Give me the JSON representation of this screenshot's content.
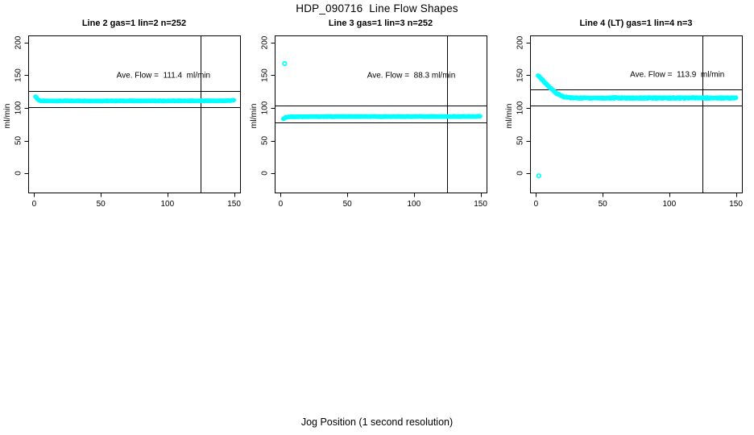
{
  "window": {
    "title": "HDP_090716  Line Flow Shapes",
    "xlabel": "Jog Position (1 second resolution)"
  },
  "colors": {
    "point": "#00FFFF",
    "line": "#000000",
    "background": "#FFFFFF"
  },
  "chart_data": [
    {
      "type": "scatter",
      "title": "Line 2 gas=1 lin=2 n=252",
      "ylabel": "ml/min",
      "ave_flow_ml_min": 111.4,
      "n_points": 252,
      "annotation": {
        "text": "Ave. Flow =  111.4  ml/min",
        "x": 97,
        "y": 149
      },
      "x_ticks": [
        0,
        50,
        100,
        150
      ],
      "y_ticks": [
        0,
        50,
        100,
        150,
        200
      ],
      "xlim": [
        -4.5,
        154.5
      ],
      "ylim": [
        -29.6,
        211.1
      ],
      "vline_x": 125,
      "hlines": [
        126.4,
        101.4
      ],
      "series": [
        {
          "name": "flow",
          "step": 0.6,
          "jitter": 0.35,
          "keypoints": [
            [
              1,
              117.6
            ],
            [
              1.5,
              116.3
            ],
            [
              2,
              114.9
            ],
            [
              2.5,
              113.7
            ],
            [
              3,
              112.7
            ],
            [
              3.5,
              112.0
            ],
            [
              4,
              111.5
            ],
            [
              5,
              111.0
            ],
            [
              6,
              110.8
            ],
            [
              8,
              110.7
            ],
            [
              15,
              110.8
            ],
            [
              30,
              110.9
            ],
            [
              50,
              110.8
            ],
            [
              70,
              110.9
            ],
            [
              90,
              110.8
            ],
            [
              110,
              110.9
            ],
            [
              130,
              110.9
            ],
            [
              142,
              111.0
            ],
            [
              146,
              111.2
            ],
            [
              148,
              111.6
            ],
            [
              150,
              112.0
            ]
          ]
        }
      ],
      "outliers": []
    },
    {
      "type": "scatter",
      "title": "Line 3 gas=1 lin=3 n=252",
      "ylabel": "ml/min",
      "ave_flow_ml_min": 88.3,
      "n_points": 252,
      "annotation": {
        "text": "Ave. Flow =  88.3 ml/min",
        "x": 98,
        "y": 149
      },
      "x_ticks": [
        0,
        50,
        100,
        150
      ],
      "y_ticks": [
        0,
        50,
        100,
        150,
        200
      ],
      "xlim": [
        -4.5,
        154.5
      ],
      "ylim": [
        -29.6,
        211.1
      ],
      "vline_x": 125,
      "hlines": [
        103.3,
        78.3
      ],
      "series": [
        {
          "name": "flow",
          "step": 0.6,
          "jitter": 0.35,
          "keypoints": [
            [
              2,
              83.0
            ],
            [
              2.5,
              83.9
            ],
            [
              3,
              84.7
            ],
            [
              3.5,
              85.3
            ],
            [
              4,
              85.8
            ],
            [
              5,
              86.2
            ],
            [
              6,
              86.5
            ],
            [
              10,
              86.6
            ],
            [
              25,
              86.7
            ],
            [
              50,
              86.8
            ],
            [
              80,
              86.8
            ],
            [
              110,
              86.9
            ],
            [
              135,
              86.9
            ],
            [
              146,
              87.0
            ],
            [
              148,
              87.2
            ],
            [
              150,
              87.5
            ]
          ]
        }
      ],
      "outliers": [
        [
          3,
          168
        ]
      ]
    },
    {
      "type": "scatter",
      "title": "Line 4 (LT) gas=1 lin=4 n=3",
      "ylabel": "ml/min",
      "ave_flow_ml_min": 113.9,
      "n_points": 3,
      "annotation": {
        "text": "Ave. Flow =  113.9  ml/min",
        "x": 106,
        "y": 151
      },
      "x_ticks": [
        0,
        50,
        100,
        150
      ],
      "y_ticks": [
        0,
        50,
        100,
        150,
        200
      ],
      "xlim": [
        -4.5,
        154.5
      ],
      "ylim": [
        -29.6,
        211.1
      ],
      "vline_x": 125,
      "hlines": [
        128.9,
        103.9
      ],
      "series": [
        {
          "name": "flow",
          "step": 0.5,
          "jitter": 0.85,
          "keypoints": [
            [
              1.5,
              149.0
            ],
            [
              2,
              148.2
            ],
            [
              3,
              146.5
            ],
            [
              4,
              144.6
            ],
            [
              5,
              142.5
            ],
            [
              6,
              140.3
            ],
            [
              7,
              138.1
            ],
            [
              8,
              135.9
            ],
            [
              9,
              133.8
            ],
            [
              10,
              131.8
            ],
            [
              11,
              129.9
            ],
            [
              12,
              128.1
            ],
            [
              13,
              126.4
            ],
            [
              14,
              124.8
            ],
            [
              15,
              123.3
            ],
            [
              16,
              121.9
            ],
            [
              17,
              120.7
            ],
            [
              18,
              119.6
            ],
            [
              19,
              118.6
            ],
            [
              20,
              117.8
            ],
            [
              22,
              116.6
            ],
            [
              24,
              116.0
            ],
            [
              26,
              115.6
            ],
            [
              28,
              115.4
            ],
            [
              30,
              115.3
            ],
            [
              35,
              115.2
            ],
            [
              40,
              115.3
            ],
            [
              50,
              115.1
            ],
            [
              60,
              115.4
            ],
            [
              70,
              115.2
            ],
            [
              80,
              115.3
            ],
            [
              90,
              115.1
            ],
            [
              100,
              115.3
            ],
            [
              110,
              115.2
            ],
            [
              120,
              115.3
            ],
            [
              130,
              115.2
            ],
            [
              140,
              115.3
            ],
            [
              150,
              115.3
            ]
          ]
        }
      ],
      "outliers": [
        [
          2,
          -4
        ]
      ]
    }
  ]
}
